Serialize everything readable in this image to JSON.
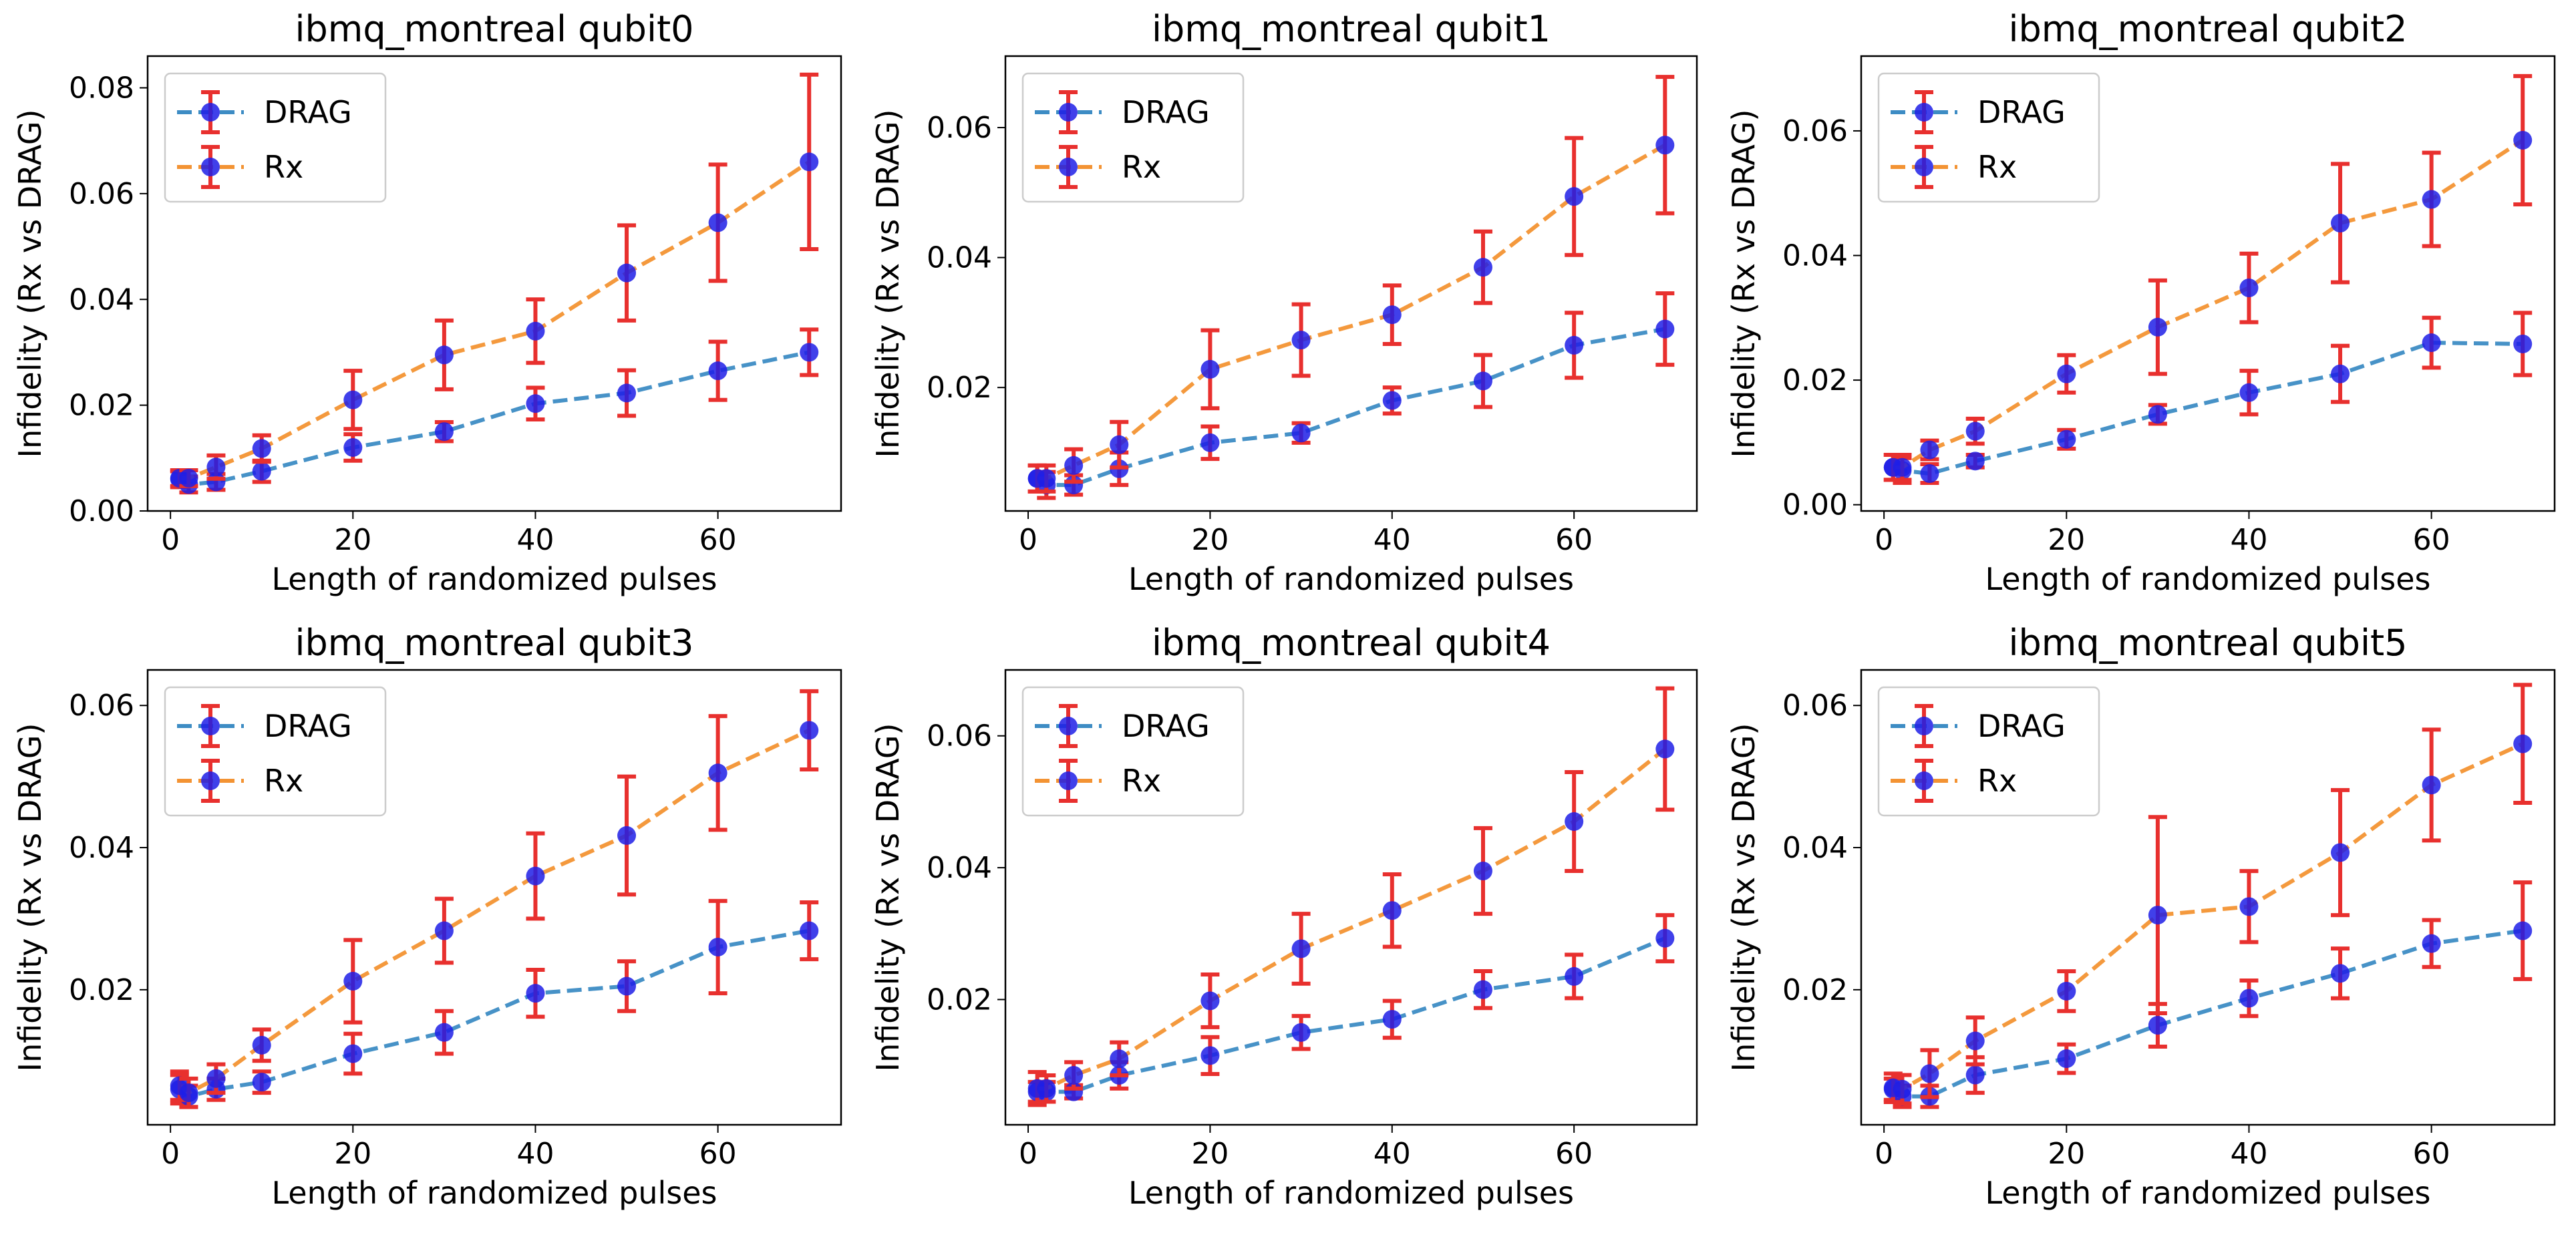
{
  "chart_data": [
    {
      "type": "line",
      "title": "ibmq_montreal qubit0",
      "xlabel": "Length of randomized pulses",
      "ylabel": "Infidelity (Rx vs DRAG)",
      "x": [
        1,
        2,
        5,
        10,
        20,
        30,
        40,
        50,
        60,
        70
      ],
      "xlim": [
        -2.5,
        73.5
      ],
      "ylim": [
        0,
        0.086
      ],
      "yticks": [
        0.0,
        0.02,
        0.04,
        0.06,
        0.08
      ],
      "ytick_decimals": 2,
      "xticks": [
        0,
        20,
        40,
        60
      ],
      "legend": "top-left",
      "series": [
        {
          "name": "DRAG",
          "values": [
            0.006,
            0.005,
            0.0055,
            0.0075,
            0.012,
            0.015,
            0.0203,
            0.0223,
            0.0265,
            0.03
          ],
          "errors": [
            0.0015,
            0.0015,
            0.0015,
            0.002,
            0.0025,
            0.0018,
            0.003,
            0.0043,
            0.0055,
            0.0043
          ]
        },
        {
          "name": "Rx",
          "values": [
            0.0062,
            0.0062,
            0.0083,
            0.0118,
            0.021,
            0.0295,
            0.034,
            0.045,
            0.0545,
            0.066
          ],
          "errors": [
            0.0015,
            0.0015,
            0.0022,
            0.0025,
            0.0055,
            0.0065,
            0.006,
            0.009,
            0.011,
            0.0165
          ]
        }
      ]
    },
    {
      "type": "line",
      "title": "ibmq_montreal qubit1",
      "xlabel": "Length of randomized pulses",
      "ylabel": "Infidelity (Rx vs DRAG)",
      "x": [
        1,
        2,
        5,
        10,
        20,
        30,
        40,
        50,
        60,
        70
      ],
      "xlim": [
        -2.5,
        73.5
      ],
      "ylim": [
        0.001,
        0.071
      ],
      "yticks": [
        0.02,
        0.04,
        0.06
      ],
      "ytick_decimals": 2,
      "xticks": [
        0,
        20,
        40,
        60
      ],
      "legend": "top-left",
      "series": [
        {
          "name": "DRAG",
          "values": [
            0.006,
            0.005,
            0.005,
            0.0075,
            0.0115,
            0.013,
            0.018,
            0.021,
            0.0265,
            0.029
          ],
          "errors": [
            0.002,
            0.002,
            0.0015,
            0.0025,
            0.0025,
            0.0015,
            0.002,
            0.004,
            0.005,
            0.0055
          ]
        },
        {
          "name": "Rx",
          "values": [
            0.006,
            0.006,
            0.008,
            0.0112,
            0.0228,
            0.0273,
            0.0312,
            0.0385,
            0.0494,
            0.0573
          ],
          "errors": [
            0.002,
            0.002,
            0.0025,
            0.0035,
            0.006,
            0.0055,
            0.0045,
            0.0055,
            0.009,
            0.0105
          ]
        }
      ]
    },
    {
      "type": "line",
      "title": "ibmq_montreal qubit2",
      "xlabel": "Length of randomized pulses",
      "ylabel": "Infidelity (Rx vs DRAG)",
      "x": [
        1,
        2,
        5,
        10,
        20,
        30,
        40,
        50,
        60,
        70
      ],
      "xlim": [
        -2.5,
        73.5
      ],
      "ylim": [
        -0.001,
        0.072
      ],
      "yticks": [
        0.0,
        0.02,
        0.04,
        0.06
      ],
      "ytick_decimals": 2,
      "xticks": [
        0,
        20,
        40,
        60
      ],
      "legend": "top-left",
      "series": [
        {
          "name": "DRAG",
          "values": [
            0.006,
            0.0055,
            0.005,
            0.007,
            0.0105,
            0.0145,
            0.018,
            0.021,
            0.026,
            0.0258
          ],
          "errors": [
            0.002,
            0.002,
            0.0015,
            0.001,
            0.0015,
            0.0015,
            0.0035,
            0.0045,
            0.004,
            0.005
          ]
        },
        {
          "name": "Rx",
          "values": [
            0.006,
            0.006,
            0.0088,
            0.0118,
            0.021,
            0.0285,
            0.0348,
            0.0452,
            0.049,
            0.0585
          ],
          "errors": [
            0.002,
            0.002,
            0.0015,
            0.002,
            0.003,
            0.0075,
            0.0055,
            0.0095,
            0.0075,
            0.0103
          ]
        }
      ]
    },
    {
      "type": "line",
      "title": "ibmq_montreal qubit3",
      "xlabel": "Length of randomized pulses",
      "ylabel": "Infidelity (Rx vs DRAG)",
      "x": [
        1,
        2,
        5,
        10,
        20,
        30,
        40,
        50,
        60,
        70
      ],
      "xlim": [
        -2.5,
        73.5
      ],
      "ylim": [
        0.001,
        0.065
      ],
      "yticks": [
        0.02,
        0.04,
        0.06
      ],
      "ytick_decimals": 2,
      "xticks": [
        0,
        20,
        40,
        60
      ],
      "legend": "top-left",
      "series": [
        {
          "name": "DRAG",
          "values": [
            0.006,
            0.005,
            0.006,
            0.007,
            0.011,
            0.014,
            0.0195,
            0.0205,
            0.026,
            0.0283
          ],
          "errors": [
            0.002,
            0.0015,
            0.0015,
            0.0015,
            0.0028,
            0.003,
            0.0033,
            0.0035,
            0.0065,
            0.004
          ]
        },
        {
          "name": "Rx",
          "values": [
            0.0065,
            0.0055,
            0.0075,
            0.0122,
            0.0212,
            0.0283,
            0.036,
            0.0417,
            0.0505,
            0.0565
          ],
          "errors": [
            0.002,
            0.002,
            0.002,
            0.0022,
            0.0058,
            0.0045,
            0.006,
            0.0083,
            0.008,
            0.0055
          ]
        }
      ]
    },
    {
      "type": "line",
      "title": "ibmq_montreal qubit4",
      "xlabel": "Length of randomized pulses",
      "ylabel": "Infidelity (Rx vs DRAG)",
      "x": [
        1,
        2,
        5,
        10,
        20,
        30,
        40,
        50,
        60,
        70
      ],
      "xlim": [
        -2.5,
        73.5
      ],
      "ylim": [
        0.001,
        0.07
      ],
      "yticks": [
        0.02,
        0.04,
        0.06
      ],
      "ytick_decimals": 2,
      "xticks": [
        0,
        20,
        40,
        60
      ],
      "legend": "top-left",
      "series": [
        {
          "name": "DRAG",
          "values": [
            0.006,
            0.006,
            0.006,
            0.0085,
            0.0115,
            0.015,
            0.017,
            0.0215,
            0.0235,
            0.0293
          ],
          "errors": [
            0.0015,
            0.0015,
            0.001,
            0.002,
            0.0028,
            0.0025,
            0.0028,
            0.0028,
            0.0033,
            0.0035
          ]
        },
        {
          "name": "Rx",
          "values": [
            0.0065,
            0.0065,
            0.0085,
            0.011,
            0.0198,
            0.0277,
            0.0335,
            0.0395,
            0.047,
            0.058
          ],
          "errors": [
            0.0025,
            0.002,
            0.002,
            0.0025,
            0.004,
            0.0053,
            0.0055,
            0.0065,
            0.0075,
            0.0092
          ]
        }
      ]
    },
    {
      "type": "line",
      "title": "ibmq_montreal qubit5",
      "xlabel": "Length of randomized pulses",
      "ylabel": "Infidelity (Rx vs DRAG)",
      "x": [
        1,
        2,
        5,
        10,
        20,
        30,
        40,
        50,
        60,
        70
      ],
      "xlim": [
        -2.5,
        73.5
      ],
      "ylim": [
        0.001,
        0.065
      ],
      "yticks": [
        0.02,
        0.04,
        0.06
      ],
      "ytick_decimals": 2,
      "xticks": [
        0,
        20,
        40,
        60
      ],
      "legend": "top-left",
      "series": [
        {
          "name": "DRAG",
          "values": [
            0.006,
            0.005,
            0.005,
            0.008,
            0.0103,
            0.015,
            0.0188,
            0.0223,
            0.0265,
            0.0283
          ],
          "errors": [
            0.0015,
            0.0015,
            0.0015,
            0.0025,
            0.002,
            0.003,
            0.0025,
            0.0035,
            0.0033,
            0.0068
          ]
        },
        {
          "name": "Rx",
          "values": [
            0.0062,
            0.006,
            0.0082,
            0.0128,
            0.0198,
            0.0305,
            0.0317,
            0.0393,
            0.0488,
            0.0546
          ],
          "errors": [
            0.002,
            0.002,
            0.0033,
            0.0033,
            0.0028,
            0.0138,
            0.005,
            0.0088,
            0.0078,
            0.0083
          ]
        }
      ]
    }
  ],
  "colors": {
    "DRAG": "#3d8cc4",
    "Rx": "#f39333",
    "marker": "#1f1fe6",
    "errorbar": "#e8302e"
  }
}
